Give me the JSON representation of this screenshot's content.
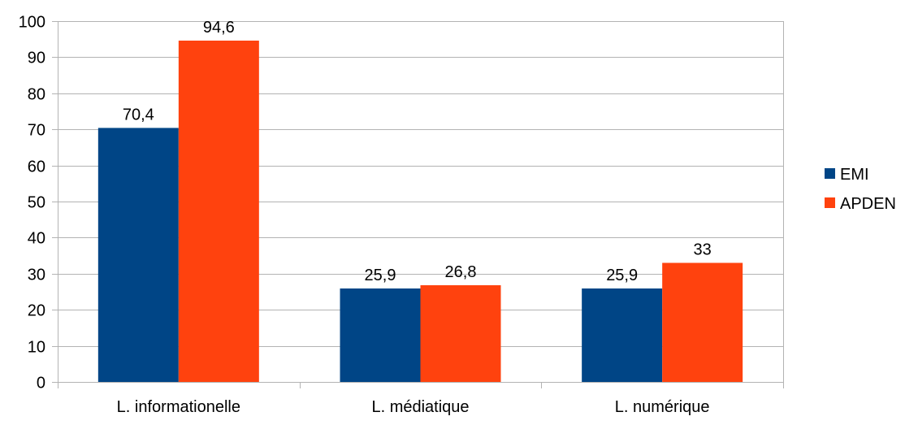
{
  "chart_data": {
    "type": "bar",
    "title": "",
    "xlabel": "",
    "ylabel": "",
    "categories": [
      "L. informationelle",
      "L. médiatique",
      "L. numérique"
    ],
    "series": [
      {
        "name": "EMI",
        "color": "#004586",
        "values": [
          70.4,
          25.9,
          25.9
        ],
        "labels": [
          "70,4",
          "25,9",
          "25,9"
        ]
      },
      {
        "name": "APDEN",
        "color": "#ff420e",
        "values": [
          94.6,
          26.8,
          33
        ],
        "labels": [
          "94,6",
          "26,8",
          "33"
        ]
      }
    ],
    "ylim": [
      0,
      100
    ],
    "yticks": [
      0,
      10,
      20,
      30,
      40,
      50,
      60,
      70,
      80,
      90,
      100
    ],
    "grid": true,
    "legend_position": "right"
  }
}
